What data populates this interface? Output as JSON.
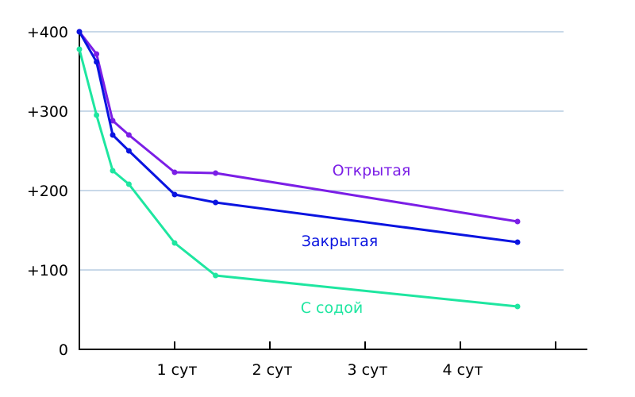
{
  "chart_data": {
    "type": "line",
    "title": "",
    "xlabel": "",
    "ylabel": "",
    "xlim": [
      0,
      5.0
    ],
    "ylim": [
      0,
      400
    ],
    "y_ticks": [
      {
        "value": 0,
        "label": "0"
      },
      {
        "value": 100,
        "label": "+100"
      },
      {
        "value": 200,
        "label": "+200"
      },
      {
        "value": 300,
        "label": "+300"
      },
      {
        "value": 400,
        "label": "+400"
      }
    ],
    "x_ticks": [
      {
        "value": 1,
        "label": "1 сут"
      },
      {
        "value": 2,
        "label": "2 сут"
      },
      {
        "value": 3,
        "label": "3 сут"
      },
      {
        "value": 4,
        "label": "4 сут"
      },
      {
        "value": 5,
        "label": ""
      }
    ],
    "grid": "horizontal",
    "series": [
      {
        "name": "Открытая",
        "color": "#7b1ee6",
        "x": [
          0,
          0.18,
          0.35,
          0.52,
          1.0,
          1.43,
          4.6
        ],
        "y": [
          400,
          372,
          288,
          270,
          223,
          222,
          161
        ]
      },
      {
        "name": "Закрытая",
        "color": "#0a14e0",
        "x": [
          0,
          0.18,
          0.35,
          0.52,
          1.0,
          1.43,
          4.6
        ],
        "y": [
          400,
          362,
          270,
          250,
          195,
          185,
          135
        ]
      },
      {
        "name": "С содой",
        "color": "#1ee6a0",
        "x": [
          0,
          0.18,
          0.35,
          0.52,
          1.0,
          1.43,
          4.6
        ],
        "y": [
          378,
          295,
          225,
          208,
          134,
          93,
          54
        ]
      }
    ]
  }
}
